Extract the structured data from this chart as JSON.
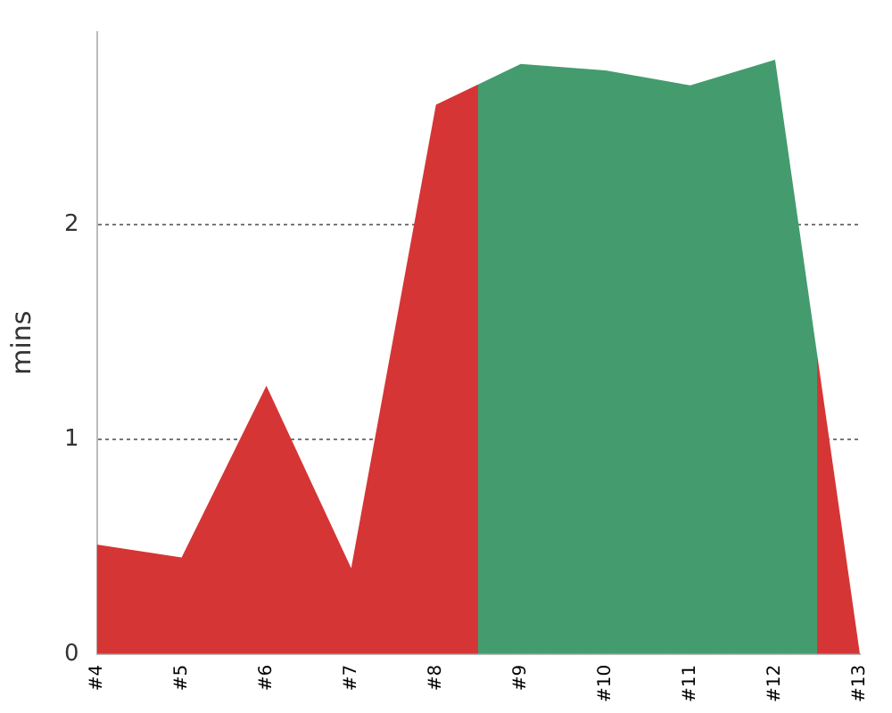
{
  "chart_data": {
    "type": "area",
    "ylabel": "mins",
    "categories": [
      "#4",
      "#5",
      "#6",
      "#7",
      "#8",
      "#9",
      "#10",
      "#11",
      "#12",
      "#13"
    ],
    "values": [
      0.51,
      0.45,
      1.25,
      0.4,
      2.56,
      2.75,
      2.72,
      2.65,
      2.77,
      0
    ],
    "colors": [
      "#d63535",
      "#d63535",
      "#d63535",
      "#d63535",
      "#d63535",
      "#449c6e",
      "#449c6e",
      "#449c6e",
      "#449c6e",
      "#d63535"
    ],
    "ylim": [
      0,
      2.9
    ],
    "yticks": [
      0,
      1,
      2
    ],
    "grid": "y",
    "legend": false
  }
}
